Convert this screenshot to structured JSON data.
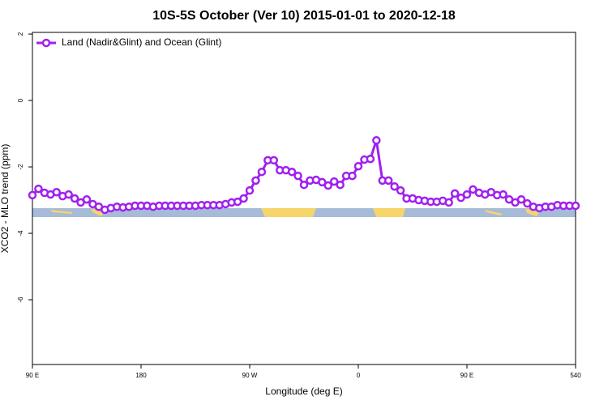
{
  "chart_data": {
    "type": "line",
    "title": "10S-5S October (Ver 10)   2015-01-01 to 2020-12-18",
    "x_label": "Longitude (deg E)",
    "y_label": "XCO2 - MLO trend (ppm)",
    "x": [
      90,
      95,
      100,
      105,
      110,
      115,
      120,
      125,
      130,
      135,
      140,
      145,
      150,
      155,
      160,
      165,
      170,
      175,
      180,
      185,
      190,
      195,
      200,
      205,
      210,
      215,
      220,
      225,
      230,
      235,
      240,
      245,
      250,
      255,
      260,
      265,
      270,
      275,
      280,
      285,
      290,
      295,
      300,
      305,
      310,
      315,
      320,
      325,
      330,
      335,
      340,
      345,
      350,
      355,
      360,
      365,
      370,
      375,
      380,
      385,
      390,
      395,
      400,
      405,
      410,
      415,
      420,
      425,
      430,
      435,
      440,
      445,
      450,
      455,
      460,
      465,
      470,
      475,
      480,
      485,
      490,
      495,
      500,
      505,
      510,
      515,
      520,
      525,
      530,
      535,
      540
    ],
    "series": [
      {
        "name": "Land (Nadir&Glint) and Ocean (Glint)",
        "color": "#a020f0",
        "values": [
          -2.85,
          -2.66,
          -2.78,
          -2.83,
          -2.76,
          -2.88,
          -2.83,
          -2.95,
          -3.07,
          -2.98,
          -3.12,
          -3.2,
          -3.29,
          -3.24,
          -3.2,
          -3.22,
          -3.2,
          -3.17,
          -3.17,
          -3.17,
          -3.2,
          -3.17,
          -3.17,
          -3.17,
          -3.17,
          -3.17,
          -3.17,
          -3.17,
          -3.15,
          -3.15,
          -3.15,
          -3.15,
          -3.12,
          -3.07,
          -3.05,
          -2.95,
          -2.71,
          -2.41,
          -2.15,
          -1.8,
          -1.8,
          -2.1,
          -2.1,
          -2.15,
          -2.27,
          -2.54,
          -2.41,
          -2.39,
          -2.46,
          -2.56,
          -2.44,
          -2.54,
          -2.27,
          -2.27,
          -1.98,
          -1.78,
          -1.76,
          -1.2,
          -2.41,
          -2.41,
          -2.59,
          -2.71,
          -2.95,
          -2.95,
          -3.0,
          -3.02,
          -3.05,
          -3.05,
          -3.02,
          -3.07,
          -2.8,
          -2.93,
          -2.83,
          -2.68,
          -2.78,
          -2.83,
          -2.76,
          -2.85,
          -2.83,
          -2.98,
          -3.07,
          -2.98,
          -3.1,
          -3.2,
          -3.24,
          -3.2,
          -3.2,
          -3.15,
          -3.17,
          -3.17,
          -3.17
        ]
      }
    ],
    "xlim": [
      90,
      540
    ],
    "xticks": [
      {
        "value": 90,
        "label": "90 E"
      },
      180,
      {
        "value": 270,
        "label": "90 W"
      },
      {
        "value": 360,
        "label": "0"
      },
      {
        "value": 450,
        "label": "90 E"
      },
      540
    ],
    "ylim": [
      -7.95,
      2.05
    ],
    "yticks": [
      2,
      0,
      -2,
      -4,
      -6
    ],
    "legend": "top-left"
  }
}
